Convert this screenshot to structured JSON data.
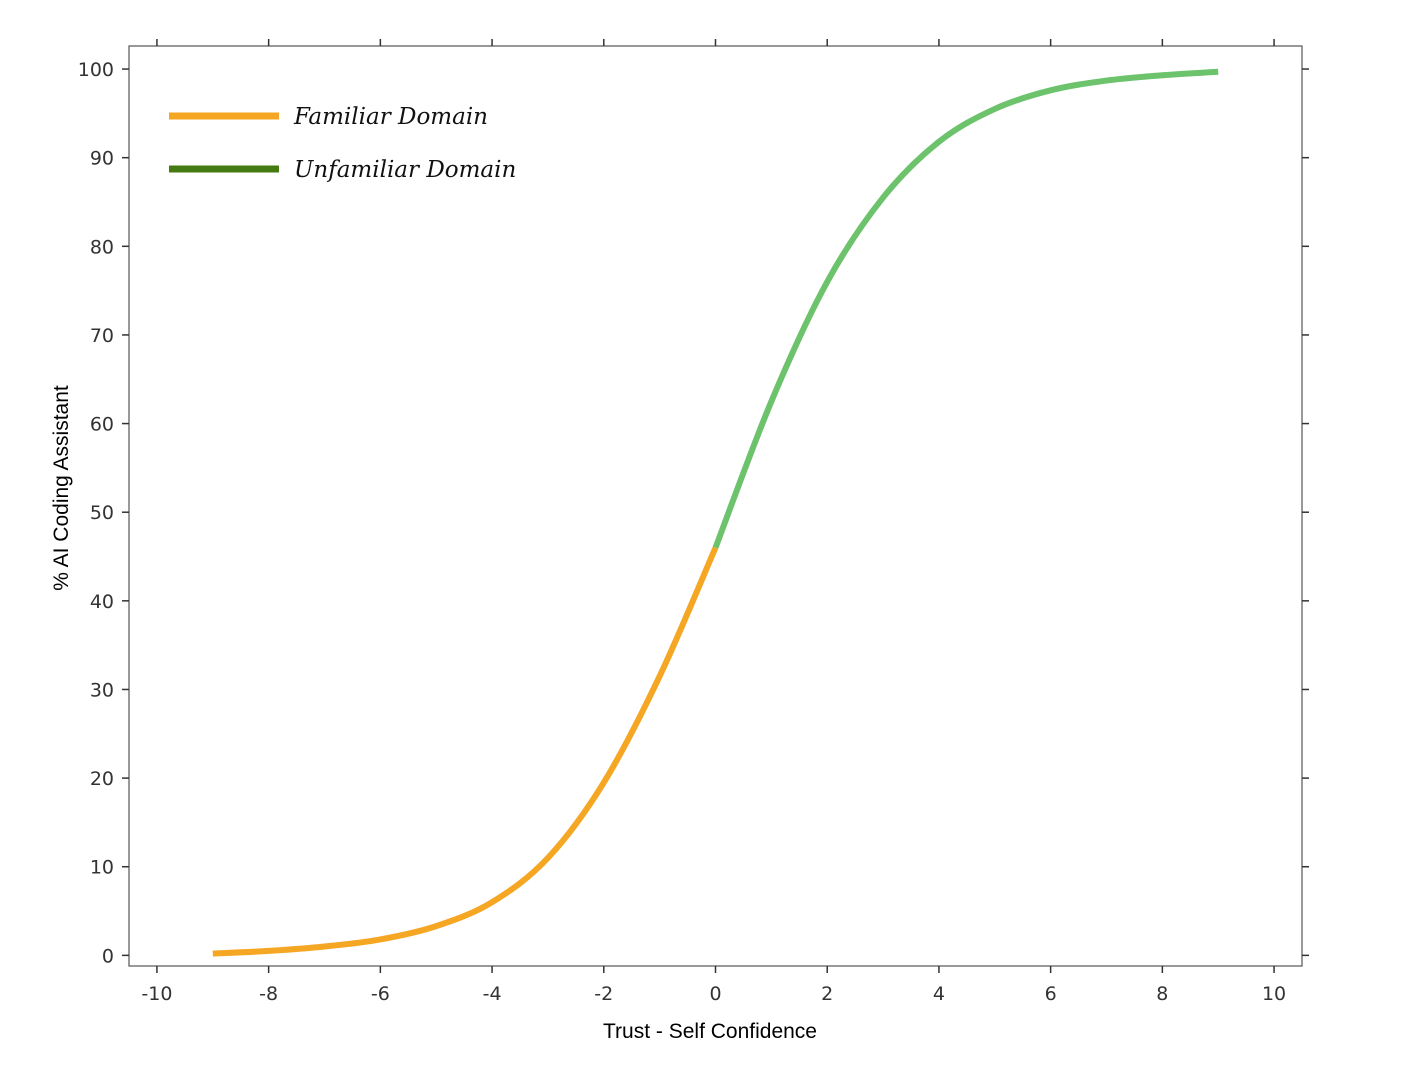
{
  "chart_data": {
    "type": "line",
    "title": "",
    "xlabel": "Trust - Self Confidence",
    "ylabel": "% AI Coding Assistant",
    "xlim": [
      -10.5,
      10.5
    ],
    "ylim": [
      -1.2,
      102.6
    ],
    "x_ticks": [
      -10,
      -8,
      -6,
      -4,
      -2,
      0,
      2,
      4,
      6,
      8,
      10
    ],
    "y_ticks": [
      0,
      10,
      20,
      30,
      40,
      50,
      60,
      70,
      80,
      90,
      100
    ],
    "x_tick_labels": [
      "-10",
      "-8",
      "-6",
      "-4",
      "-2",
      "0",
      "2",
      "4",
      "6",
      "8",
      "10"
    ],
    "y_tick_labels": [
      "0",
      "10",
      "20",
      "30",
      "40",
      "50",
      "60",
      "70",
      "80",
      "90",
      "100"
    ],
    "grid": false,
    "legend_position": "top-left",
    "series": [
      {
        "name": "Familiar Domain",
        "legend_color": "#f5a623",
        "line_color": "#f5a623",
        "x": [
          -9,
          -8,
          -7,
          -6,
          -5,
          -4,
          -3,
          -2,
          -1,
          0
        ],
        "y": [
          0.2,
          0.5,
          1.0,
          1.8,
          3.3,
          6.0,
          11.0,
          19.5,
          31.5,
          46.0
        ]
      },
      {
        "name": "Unfamiliar Domain",
        "legend_color": "#457a10",
        "line_color": "#6cc36c",
        "x": [
          0,
          1,
          2,
          3,
          4,
          5,
          6,
          7,
          8,
          9
        ],
        "y": [
          46.0,
          62.5,
          76.0,
          85.5,
          91.8,
          95.5,
          97.6,
          98.7,
          99.3,
          99.7
        ]
      }
    ]
  }
}
